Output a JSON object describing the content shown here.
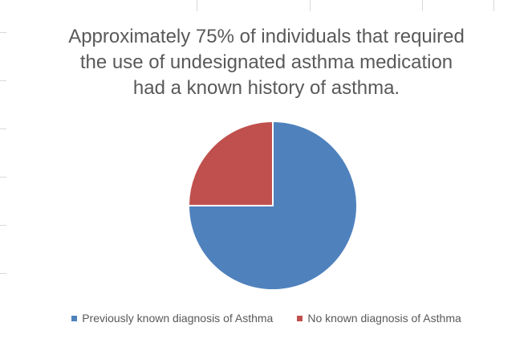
{
  "chart_data": {
    "type": "pie",
    "title_lines": [
      "Approximately 75% of individuals that required",
      "the use of undesignated asthma medication",
      "had a known history of asthma."
    ],
    "categories": [
      "Previously known diagnosis of Asthma",
      "No known diagnosis of Asthma"
    ],
    "values": [
      75,
      25
    ],
    "colors": [
      "#4f81bd",
      "#c0504d"
    ],
    "start_angle_deg": 0,
    "direction": "clockwise",
    "legend_position": "bottom"
  }
}
